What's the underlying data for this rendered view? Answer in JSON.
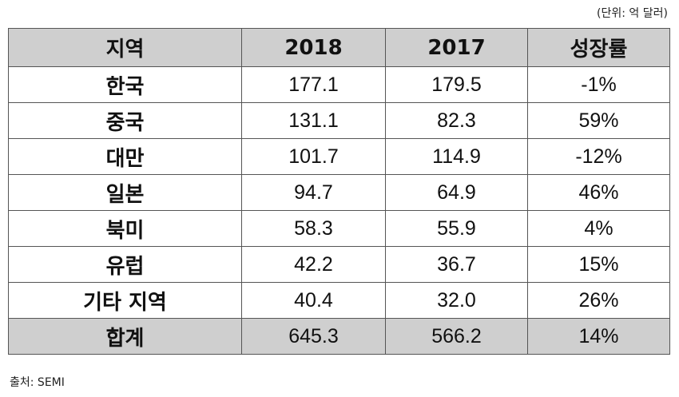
{
  "unit_note": "(단위:  억 달러)",
  "table": {
    "headers": {
      "region": "지역",
      "y2018": "2018",
      "y2017": "2017",
      "growth": "성장률"
    },
    "rows": [
      {
        "region": "한국",
        "y2018": "177.1",
        "y2017": "179.5",
        "growth": "-1%"
      },
      {
        "region": "중국",
        "y2018": "131.1",
        "y2017": "82.3",
        "growth": "59%"
      },
      {
        "region": "대만",
        "y2018": "101.7",
        "y2017": "114.9",
        "growth": "-12%"
      },
      {
        "region": "일본",
        "y2018": "94.7",
        "y2017": "64.9",
        "growth": "46%"
      },
      {
        "region": "북미",
        "y2018": "58.3",
        "y2017": "55.9",
        "growth": "4%"
      },
      {
        "region": "유럽",
        "y2018": "42.2",
        "y2017": "36.7",
        "growth": "15%"
      },
      {
        "region": "기타 지역",
        "y2018": "40.4",
        "y2017": "32.0",
        "growth": "26%"
      }
    ],
    "total": {
      "region": "합계",
      "y2018": "645.3",
      "y2017": "566.2",
      "growth": "14%"
    }
  },
  "source": "출처: SEMI",
  "colors": {
    "header_fill": "#cfcfcf",
    "border": "#555555"
  }
}
